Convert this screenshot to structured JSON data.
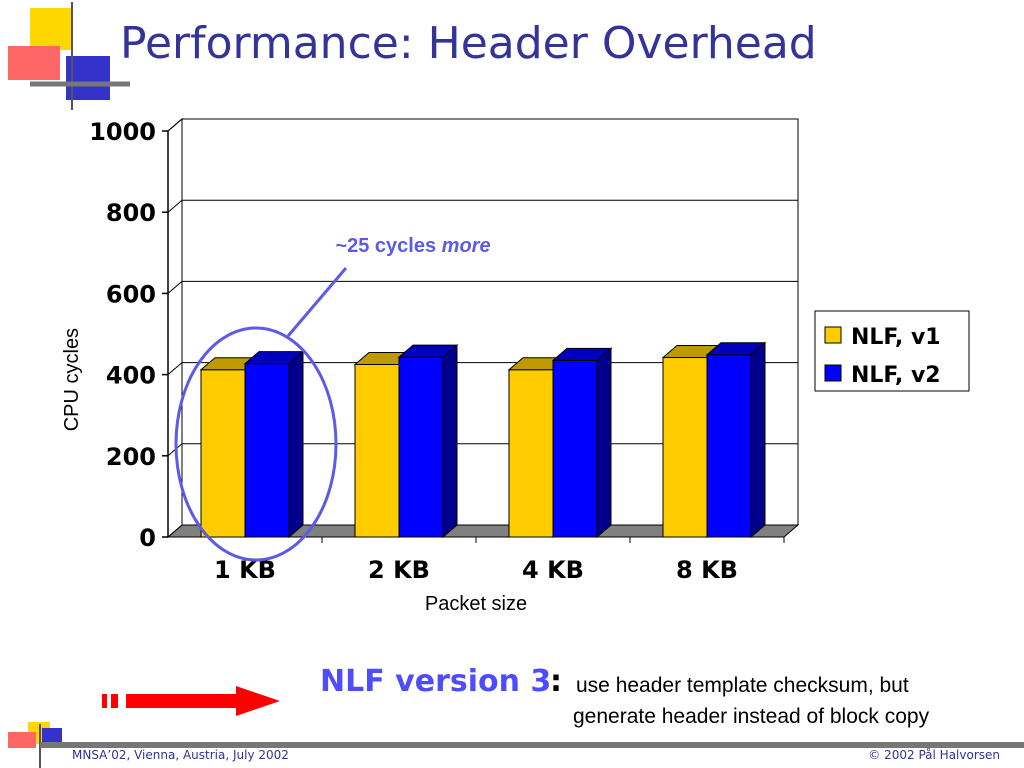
{
  "slide": {
    "title": "Performance: Header Overhead",
    "footer_left": "MNSA’02, Vienna, Austria, July 2002",
    "footer_right": "© 2002  Pål Halvorsen",
    "callout": {
      "prefix": "~25 cycles ",
      "emphasis": "more"
    },
    "nlf3": {
      "title": "NLF version 3",
      "colon": ":",
      "line1": "use header template checksum, but",
      "line2": "generate header instead of block copy"
    }
  },
  "colors": {
    "title": "#333399",
    "v1": "#FFCC00",
    "v2": "#0000FF",
    "callout": "#5B5BE6",
    "arrow": "#FF0000"
  },
  "chart_data": {
    "type": "bar",
    "categories": [
      "1 KB",
      "2 KB",
      "4 KB",
      "8 KB"
    ],
    "series": [
      {
        "name": "NLF, v1",
        "values": [
          412,
          425,
          412,
          442
        ]
      },
      {
        "name": "NLF, v2",
        "values": [
          427,
          443,
          435,
          449
        ]
      }
    ],
    "xlabel": "Packet size",
    "ylabel": "CPU cycles",
    "ylim": [
      0,
      1000
    ],
    "yticks": [
      0,
      200,
      400,
      600,
      800,
      1000
    ],
    "grid": true,
    "legend_position": "right",
    "style": "3d-bar"
  }
}
